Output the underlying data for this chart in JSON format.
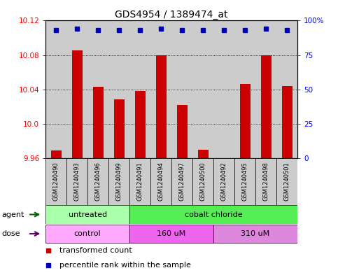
{
  "title": "GDS4954 / 1389474_at",
  "samples": [
    "GSM1240490",
    "GSM1240493",
    "GSM1240496",
    "GSM1240499",
    "GSM1240491",
    "GSM1240494",
    "GSM1240497",
    "GSM1240500",
    "GSM1240492",
    "GSM1240495",
    "GSM1240498",
    "GSM1240501"
  ],
  "transformed_counts": [
    9.969,
    10.085,
    10.043,
    10.028,
    10.038,
    10.08,
    10.022,
    9.97,
    9.96,
    10.046,
    10.08,
    10.044
  ],
  "percentile_ranks": [
    93,
    94,
    93,
    93,
    93,
    94,
    93,
    93,
    93,
    93,
    94,
    93
  ],
  "ylim_left": [
    9.96,
    10.12
  ],
  "ylim_right": [
    0,
    100
  ],
  "yticks_left": [
    9.96,
    10.0,
    10.04,
    10.08,
    10.12
  ],
  "yticks_right": [
    0,
    25,
    50,
    75,
    100
  ],
  "ytick_labels_right": [
    "0",
    "25",
    "50",
    "75",
    "100%"
  ],
  "bar_color": "#cc0000",
  "dot_color": "#0000bb",
  "agent_groups": [
    {
      "label": "untreated",
      "start": 0,
      "end": 4,
      "color": "#aaffaa"
    },
    {
      "label": "cobalt chloride",
      "start": 4,
      "end": 12,
      "color": "#55ee55"
    }
  ],
  "dose_groups": [
    {
      "label": "control",
      "start": 0,
      "end": 4,
      "color": "#ffaaff"
    },
    {
      "label": "160 uM",
      "start": 4,
      "end": 8,
      "color": "#ee66ee"
    },
    {
      "label": "310 uM",
      "start": 8,
      "end": 12,
      "color": "#dd88dd"
    }
  ],
  "legend_items": [
    {
      "label": "transformed count",
      "color": "#cc0000"
    },
    {
      "label": "percentile rank within the sample",
      "color": "#0000bb"
    }
  ],
  "box_color": "#cccccc",
  "title_fontsize": 10,
  "tick_fontsize": 7.5,
  "label_fontsize": 8,
  "sample_fontsize": 6
}
